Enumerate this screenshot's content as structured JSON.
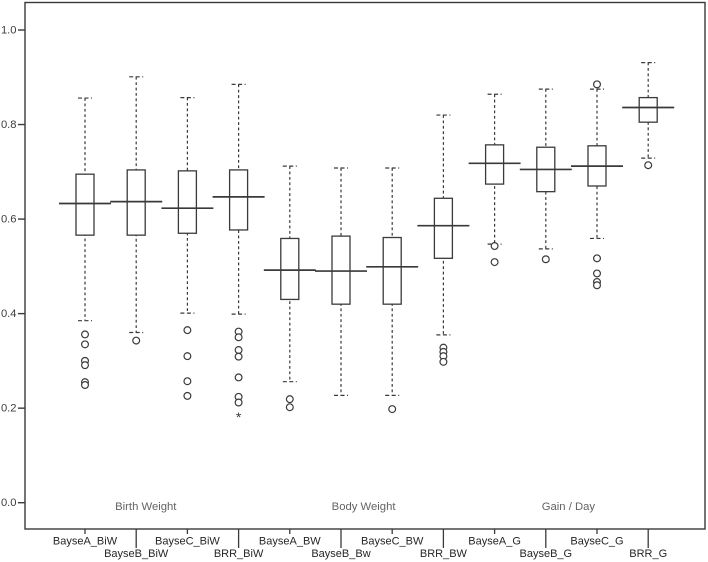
{
  "chart_data": {
    "type": "boxplot",
    "title": "",
    "xlabel": "",
    "ylabel": "",
    "ylim": [
      0.0,
      1.05
    ],
    "yticks": [
      1.0,
      0.8,
      0.6,
      0.4,
      0.2,
      0.0
    ],
    "ytick_labels": [
      "1.0",
      "0.8",
      "0.6",
      "0.4",
      "0.2",
      "0.0"
    ],
    "grid": false,
    "frame": true,
    "legend": "none",
    "outlier_marker": "circle",
    "extreme_marker": "*",
    "groups": [
      {
        "label": "Birth Weight",
        "from": 0,
        "to": 3
      },
      {
        "label": "Body Weight",
        "from": 4,
        "to": 7
      },
      {
        "label": "Gain / Day",
        "from": 8,
        "to": 11
      }
    ],
    "categories": [
      "BayseA_BiW",
      "BayseB_BiW",
      "BayseC_BiW",
      "BRR_BiW",
      "BayseA_BW",
      "BayseB_Bw",
      "BayseC_BW",
      "BRR_BW",
      "BayseA_G",
      "BayseB_G",
      "BayseC_G",
      "BRR_G"
    ],
    "label_rows": [
      1,
      2,
      1,
      2,
      1,
      2,
      1,
      2,
      1,
      2,
      1,
      2
    ],
    "series": [
      {
        "name": "BayseA_BiW",
        "whisker_low": 0.385,
        "q1": 0.566,
        "median": 0.633,
        "q3": 0.695,
        "whisker_high": 0.856,
        "outliers": [
          0.356,
          0.335,
          0.3,
          0.291,
          0.255,
          0.249
        ],
        "extremes": []
      },
      {
        "name": "BayseB_BiW",
        "whisker_low": 0.36,
        "q1": 0.566,
        "median": 0.637,
        "q3": 0.704,
        "whisker_high": 0.901,
        "outliers": [
          0.343
        ],
        "extremes": []
      },
      {
        "name": "BayseC_BiW",
        "whisker_low": 0.401,
        "q1": 0.57,
        "median": 0.623,
        "q3": 0.702,
        "whisker_high": 0.857,
        "outliers": [
          0.365,
          0.31,
          0.257,
          0.226
        ],
        "extremes": []
      },
      {
        "name": "BRR_BiW",
        "whisker_low": 0.399,
        "q1": 0.577,
        "median": 0.647,
        "q3": 0.704,
        "whisker_high": 0.885,
        "outliers": [
          0.362,
          0.35,
          0.323,
          0.309,
          0.265,
          0.224,
          0.212
        ],
        "extremes": [
          0.188
        ]
      },
      {
        "name": "BayseA_BW",
        "whisker_low": 0.256,
        "q1": 0.43,
        "median": 0.492,
        "q3": 0.559,
        "whisker_high": 0.712,
        "outliers": [
          0.219,
          0.202
        ],
        "extremes": []
      },
      {
        "name": "BayseB_Bw",
        "whisker_low": 0.227,
        "q1": 0.42,
        "median": 0.49,
        "q3": 0.564,
        "whisker_high": 0.708,
        "outliers": [],
        "extremes": []
      },
      {
        "name": "BayseC_BW",
        "whisker_low": 0.227,
        "q1": 0.42,
        "median": 0.499,
        "q3": 0.561,
        "whisker_high": 0.708,
        "outliers": [
          0.198
        ],
        "extremes": []
      },
      {
        "name": "BRR_BW",
        "whisker_low": 0.355,
        "q1": 0.517,
        "median": 0.586,
        "q3": 0.644,
        "whisker_high": 0.82,
        "outliers": [
          0.328,
          0.319,
          0.31,
          0.298
        ],
        "extremes": []
      },
      {
        "name": "BayseA_G",
        "whisker_low": 0.547,
        "q1": 0.674,
        "median": 0.718,
        "q3": 0.757,
        "whisker_high": 0.864,
        "outliers": [
          0.543,
          0.509
        ],
        "extremes": []
      },
      {
        "name": "BayseB_G",
        "whisker_low": 0.537,
        "q1": 0.658,
        "median": 0.705,
        "q3": 0.752,
        "whisker_high": 0.875,
        "outliers": [
          0.515
        ],
        "extremes": []
      },
      {
        "name": "BayseC_G",
        "whisker_low": 0.559,
        "q1": 0.67,
        "median": 0.712,
        "q3": 0.755,
        "whisker_high": 0.875,
        "outliers": [
          0.885,
          0.517,
          0.485,
          0.467,
          0.46
        ],
        "extremes": []
      },
      {
        "name": "BRR_G",
        "whisker_low": 0.729,
        "q1": 0.805,
        "median": 0.836,
        "q3": 0.857,
        "whisker_high": 0.931,
        "outliers": [
          0.714
        ],
        "extremes": []
      }
    ],
    "colors": {
      "line": "#3a3a3a",
      "box_fill": "#ffffff",
      "tick_text": "#3c3c3c",
      "category_text": "#262626",
      "group_text": "#636363",
      "background": "#ffffff"
    }
  }
}
